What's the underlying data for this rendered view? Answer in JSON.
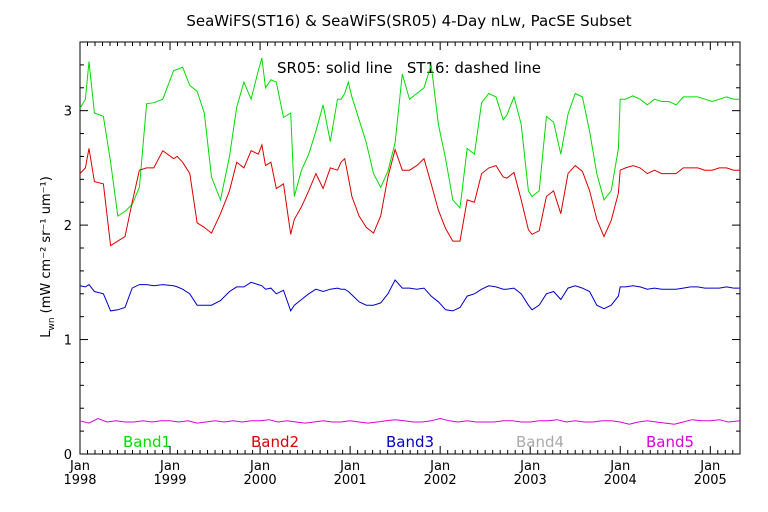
{
  "chart_data": {
    "type": "line",
    "title": "SeaWiFS(ST16) & SeaWiFS(SR05) 4-Day nLw, PacSE Subset",
    "annotation": "SR05: solid line   ST16: dashed line",
    "ylabel": {
      "main": "L",
      "sub": "wn",
      "unit": " (mW cm⁻² sr⁻¹ um⁻¹)"
    },
    "xlim": [
      1998.0,
      2005.33
    ],
    "ylim": [
      0,
      3.6
    ],
    "x_ticks": [
      {
        "pos": 1998,
        "month": "Jan",
        "year": "1998"
      },
      {
        "pos": 1999,
        "month": "Jan",
        "year": "1999"
      },
      {
        "pos": 2000,
        "month": "Jan",
        "year": "2000"
      },
      {
        "pos": 2001,
        "month": "Jan",
        "year": "2001"
      },
      {
        "pos": 2002,
        "month": "Jan",
        "year": "2002"
      },
      {
        "pos": 2003,
        "month": "Jan",
        "year": "2003"
      },
      {
        "pos": 2004,
        "month": "Jan",
        "year": "2004"
      },
      {
        "pos": 2005,
        "month": "Jan",
        "year": "2005"
      }
    ],
    "y_ticks": [
      0,
      1,
      2,
      3
    ],
    "legend": [
      {
        "label": "Band1",
        "color": "#00dd00"
      },
      {
        "label": "Band2",
        "color": "#dd0000"
      },
      {
        "label": "Band3",
        "color": "#0000cc"
      },
      {
        "label": "Band4",
        "color": "#aaaaaa"
      },
      {
        "label": "Band5",
        "color": "#dd00dd"
      }
    ],
    "series": [
      {
        "name": "Band1",
        "color": "#00dd00",
        "x": [
          1998.0,
          1998.06,
          1998.1,
          1998.16,
          1998.26,
          1998.34,
          1998.42,
          1998.5,
          1998.58,
          1998.66,
          1998.74,
          1998.82,
          1998.92,
          1999.04,
          1999.08,
          1999.14,
          1999.22,
          1999.3,
          1999.38,
          1999.46,
          1999.56,
          1999.66,
          1999.74,
          1999.82,
          1999.9,
          1999.98,
          2000.02,
          2000.06,
          2000.12,
          2000.18,
          2000.26,
          2000.34,
          2000.38,
          2000.46,
          2000.54,
          2000.62,
          2000.7,
          2000.78,
          2000.86,
          2000.9,
          2000.94,
          2000.98,
          2001.02,
          2001.1,
          2001.18,
          2001.26,
          2001.34,
          2001.42,
          2001.5,
          2001.58,
          2001.66,
          2001.74,
          2001.82,
          2001.9,
          2001.98,
          2002.06,
          2002.14,
          2002.22,
          2002.3,
          2002.38,
          2002.46,
          2002.54,
          2002.62,
          2002.7,
          2002.74,
          2002.82,
          2002.9,
          2002.98,
          2003.02,
          2003.1,
          2003.18,
          2003.26,
          2003.34,
          2003.42,
          2003.5,
          2003.58,
          2003.66,
          2003.74,
          2003.82,
          2003.9,
          2003.98,
          2004.0,
          2004.06,
          2004.14,
          2004.22,
          2004.3,
          2004.38,
          2004.46,
          2004.54,
          2004.62,
          2004.7,
          2004.78,
          2004.86,
          2004.94,
          2005.02,
          2005.1,
          2005.18,
          2005.26,
          2005.33
        ],
        "values": [
          3.02,
          3.1,
          3.43,
          2.98,
          2.95,
          2.55,
          2.08,
          2.12,
          2.18,
          2.33,
          3.06,
          3.07,
          3.1,
          3.35,
          3.36,
          3.38,
          3.22,
          3.17,
          2.98,
          2.42,
          2.22,
          2.6,
          3.03,
          3.25,
          3.1,
          3.35,
          3.46,
          3.2,
          3.27,
          3.25,
          2.94,
          2.98,
          2.25,
          2.48,
          2.62,
          2.82,
          3.05,
          2.73,
          3.1,
          3.1,
          3.15,
          3.25,
          3.12,
          2.92,
          2.72,
          2.45,
          2.33,
          2.47,
          2.72,
          3.32,
          3.1,
          3.15,
          3.2,
          3.4,
          2.88,
          2.58,
          2.22,
          2.15,
          2.67,
          2.62,
          3.07,
          3.15,
          3.12,
          2.92,
          2.96,
          3.12,
          2.88,
          2.3,
          2.25,
          2.3,
          2.95,
          2.9,
          2.62,
          2.97,
          3.15,
          3.12,
          2.82,
          2.45,
          2.22,
          2.3,
          2.67,
          3.1,
          3.1,
          3.13,
          3.1,
          3.05,
          3.1,
          3.08,
          3.08,
          3.05,
          3.12,
          3.12,
          3.12,
          3.1,
          3.08,
          3.1,
          3.12,
          3.1,
          3.1
        ]
      },
      {
        "name": "Band2",
        "color": "#dd0000",
        "x": [
          1998.0,
          1998.06,
          1998.1,
          1998.16,
          1998.26,
          1998.34,
          1998.42,
          1998.5,
          1998.58,
          1998.66,
          1998.74,
          1998.82,
          1998.92,
          1999.04,
          1999.08,
          1999.14,
          1999.22,
          1999.3,
          1999.38,
          1999.46,
          1999.56,
          1999.66,
          1999.74,
          1999.82,
          1999.9,
          1999.98,
          2000.02,
          2000.06,
          2000.12,
          2000.18,
          2000.26,
          2000.34,
          2000.38,
          2000.46,
          2000.54,
          2000.62,
          2000.7,
          2000.78,
          2000.86,
          2000.9,
          2000.94,
          2000.98,
          2001.02,
          2001.1,
          2001.18,
          2001.26,
          2001.34,
          2001.42,
          2001.5,
          2001.58,
          2001.66,
          2001.74,
          2001.82,
          2001.9,
          2001.98,
          2002.06,
          2002.14,
          2002.22,
          2002.3,
          2002.38,
          2002.46,
          2002.54,
          2002.62,
          2002.7,
          2002.74,
          2002.82,
          2002.9,
          2002.98,
          2003.02,
          2003.1,
          2003.18,
          2003.26,
          2003.34,
          2003.42,
          2003.5,
          2003.58,
          2003.66,
          2003.74,
          2003.82,
          2003.9,
          2003.98,
          2004.0,
          2004.06,
          2004.14,
          2004.22,
          2004.3,
          2004.38,
          2004.46,
          2004.54,
          2004.62,
          2004.7,
          2004.78,
          2004.86,
          2004.94,
          2005.02,
          2005.1,
          2005.18,
          2005.26,
          2005.33
        ],
        "values": [
          2.45,
          2.5,
          2.67,
          2.38,
          2.36,
          1.82,
          1.86,
          1.9,
          2.2,
          2.48,
          2.5,
          2.5,
          2.65,
          2.58,
          2.6,
          2.55,
          2.45,
          2.02,
          1.98,
          1.93,
          2.1,
          2.3,
          2.55,
          2.5,
          2.65,
          2.62,
          2.7,
          2.52,
          2.55,
          2.32,
          2.36,
          1.92,
          2.05,
          2.16,
          2.3,
          2.45,
          2.32,
          2.5,
          2.48,
          2.55,
          2.58,
          2.42,
          2.25,
          2.08,
          1.98,
          1.93,
          2.08,
          2.42,
          2.66,
          2.48,
          2.48,
          2.52,
          2.58,
          2.36,
          2.13,
          1.97,
          1.86,
          1.86,
          2.22,
          2.2,
          2.45,
          2.5,
          2.52,
          2.42,
          2.41,
          2.46,
          2.22,
          1.96,
          1.92,
          1.95,
          2.25,
          2.3,
          2.1,
          2.45,
          2.52,
          2.47,
          2.3,
          2.05,
          1.9,
          2.04,
          2.28,
          2.48,
          2.5,
          2.52,
          2.5,
          2.45,
          2.48,
          2.45,
          2.45,
          2.45,
          2.5,
          2.5,
          2.5,
          2.48,
          2.48,
          2.5,
          2.5,
          2.48,
          2.48
        ]
      },
      {
        "name": "Band3",
        "color": "#0000cc",
        "x": [
          1998.0,
          1998.06,
          1998.1,
          1998.16,
          1998.26,
          1998.34,
          1998.42,
          1998.5,
          1998.58,
          1998.66,
          1998.74,
          1998.82,
          1998.92,
          1999.04,
          1999.08,
          1999.14,
          1999.22,
          1999.3,
          1999.38,
          1999.46,
          1999.56,
          1999.66,
          1999.74,
          1999.82,
          1999.9,
          1999.98,
          2000.02,
          2000.06,
          2000.12,
          2000.18,
          2000.26,
          2000.34,
          2000.38,
          2000.46,
          2000.54,
          2000.62,
          2000.7,
          2000.78,
          2000.86,
          2000.9,
          2000.94,
          2000.98,
          2001.02,
          2001.1,
          2001.18,
          2001.26,
          2001.34,
          2001.42,
          2001.5,
          2001.58,
          2001.66,
          2001.74,
          2001.82,
          2001.9,
          2001.98,
          2002.06,
          2002.14,
          2002.22,
          2002.3,
          2002.38,
          2002.46,
          2002.54,
          2002.62,
          2002.7,
          2002.74,
          2002.82,
          2002.9,
          2002.98,
          2003.02,
          2003.1,
          2003.18,
          2003.26,
          2003.34,
          2003.42,
          2003.5,
          2003.58,
          2003.66,
          2003.74,
          2003.82,
          2003.9,
          2003.98,
          2004.0,
          2004.06,
          2004.14,
          2004.22,
          2004.3,
          2004.38,
          2004.46,
          2004.54,
          2004.62,
          2004.7,
          2004.78,
          2004.86,
          2004.94,
          2005.02,
          2005.1,
          2005.18,
          2005.26,
          2005.33
        ],
        "values": [
          1.47,
          1.46,
          1.48,
          1.42,
          1.4,
          1.25,
          1.26,
          1.28,
          1.45,
          1.48,
          1.48,
          1.47,
          1.48,
          1.47,
          1.46,
          1.44,
          1.4,
          1.3,
          1.3,
          1.3,
          1.34,
          1.42,
          1.46,
          1.46,
          1.5,
          1.48,
          1.47,
          1.44,
          1.45,
          1.4,
          1.43,
          1.25,
          1.3,
          1.35,
          1.4,
          1.44,
          1.42,
          1.44,
          1.45,
          1.44,
          1.44,
          1.42,
          1.39,
          1.33,
          1.3,
          1.3,
          1.32,
          1.4,
          1.52,
          1.45,
          1.45,
          1.44,
          1.45,
          1.38,
          1.33,
          1.26,
          1.25,
          1.28,
          1.38,
          1.4,
          1.44,
          1.47,
          1.46,
          1.44,
          1.44,
          1.45,
          1.4,
          1.3,
          1.26,
          1.3,
          1.4,
          1.42,
          1.35,
          1.45,
          1.47,
          1.45,
          1.42,
          1.3,
          1.27,
          1.3,
          1.38,
          1.46,
          1.46,
          1.47,
          1.46,
          1.44,
          1.45,
          1.44,
          1.44,
          1.44,
          1.45,
          1.46,
          1.46,
          1.45,
          1.45,
          1.45,
          1.46,
          1.45,
          1.45
        ]
      },
      {
        "name": "Band5",
        "color": "#dd00dd",
        "x": [
          1998.0,
          1998.1,
          1998.2,
          1998.3,
          1998.4,
          1998.5,
          1998.6,
          1998.7,
          1998.8,
          1998.9,
          1999.0,
          1999.1,
          1999.2,
          1999.3,
          1999.4,
          1999.5,
          1999.6,
          1999.7,
          1999.8,
          1999.9,
          2000.0,
          2000.1,
          2000.2,
          2000.3,
          2000.4,
          2000.5,
          2000.6,
          2000.7,
          2000.8,
          2000.9,
          2001.0,
          2001.1,
          2001.2,
          2001.3,
          2001.4,
          2001.5,
          2001.6,
          2001.7,
          2001.8,
          2001.9,
          2002.0,
          2002.1,
          2002.2,
          2002.3,
          2002.4,
          2002.5,
          2002.6,
          2002.7,
          2002.8,
          2002.9,
          2003.0,
          2003.1,
          2003.2,
          2003.3,
          2003.4,
          2003.5,
          2003.6,
          2003.7,
          2003.8,
          2003.9,
          2004.0,
          2004.1,
          2004.2,
          2004.3,
          2004.4,
          2004.5,
          2004.6,
          2004.7,
          2004.8,
          2004.9,
          2005.0,
          2005.1,
          2005.2,
          2005.33
        ],
        "values": [
          0.29,
          0.27,
          0.31,
          0.28,
          0.29,
          0.28,
          0.28,
          0.29,
          0.28,
          0.29,
          0.29,
          0.28,
          0.29,
          0.27,
          0.28,
          0.29,
          0.28,
          0.29,
          0.28,
          0.29,
          0.29,
          0.3,
          0.28,
          0.29,
          0.28,
          0.27,
          0.28,
          0.29,
          0.28,
          0.28,
          0.29,
          0.28,
          0.27,
          0.28,
          0.29,
          0.3,
          0.29,
          0.28,
          0.28,
          0.29,
          0.31,
          0.29,
          0.28,
          0.29,
          0.28,
          0.28,
          0.28,
          0.29,
          0.29,
          0.28,
          0.28,
          0.29,
          0.29,
          0.3,
          0.28,
          0.29,
          0.28,
          0.28,
          0.29,
          0.29,
          0.28,
          0.26,
          0.28,
          0.29,
          0.28,
          0.27,
          0.26,
          0.28,
          0.3,
          0.29,
          0.29,
          0.3,
          0.28,
          0.29
        ]
      }
    ]
  }
}
